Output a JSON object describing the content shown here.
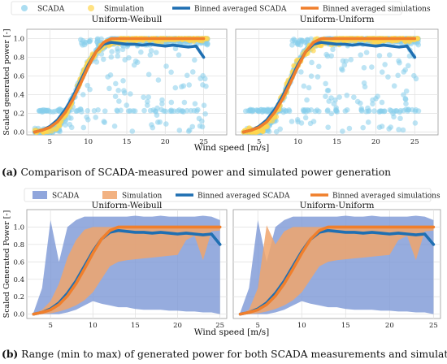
{
  "figure": {
    "caption_a_label": "(a)",
    "caption_a_text": " Comparison of SCADA-measured power and simulated power generation",
    "caption_b_label": "(b)",
    "caption_b_text": " Range (min to max) of generated power for both SCADA measurements and simulations"
  },
  "colors": {
    "scada": "#87ceeb",
    "simulation": "#ffd54f",
    "binned_scada": "#1f6fb2",
    "binned_sim": "#f07f2c",
    "range_scada": "#7c97d6",
    "range_sim": "#f0a56c"
  },
  "chart_data": [
    {
      "panel": "a",
      "type": "scatter",
      "legend": [
        "SCADA",
        "Simulation",
        "Binned averaged SCADA",
        "Binned averaged simulations"
      ],
      "legend_placement": "top",
      "xlabel": "Wind speed [m/s]",
      "ylabel": "Scaled generated power [-]",
      "xlim": [
        2,
        28
      ],
      "ylim": [
        -0.03,
        1.1
      ],
      "xticks": [
        5,
        10,
        15,
        20,
        25
      ],
      "yticks": [
        0.0,
        0.2,
        0.4,
        0.6,
        0.8,
        1.0
      ],
      "grid": true,
      "subplots": [
        {
          "title": "Uniform-Weibull",
          "show_yticklabels": true,
          "series": [
            {
              "name": "Binned averaged SCADA",
              "x": [
                3,
                4,
                5,
                6,
                7,
                8,
                9,
                10,
                11,
                12,
                13,
                14,
                15,
                16,
                17,
                18,
                19,
                20,
                21,
                22,
                23,
                24,
                25
              ],
              "y": [
                0.0,
                0.02,
                0.06,
                0.13,
                0.24,
                0.38,
                0.55,
                0.72,
                0.86,
                0.94,
                0.96,
                0.95,
                0.94,
                0.94,
                0.93,
                0.94,
                0.93,
                0.92,
                0.93,
                0.92,
                0.91,
                0.92,
                0.8
              ]
            },
            {
              "name": "Binned averaged simulations",
              "x": [
                3,
                4,
                5,
                6,
                7,
                8,
                9,
                10,
                11,
                12,
                13,
                14,
                15,
                16,
                17,
                18,
                19,
                20,
                21,
                22,
                23,
                24,
                25
              ],
              "y": [
                0.0,
                0.02,
                0.05,
                0.11,
                0.21,
                0.35,
                0.52,
                0.7,
                0.86,
                0.96,
                1.0,
                1.0,
                1.0,
                1.0,
                1.0,
                1.0,
                1.0,
                1.0,
                1.0,
                1.0,
                1.0,
                1.0,
                1.0
              ]
            }
          ]
        },
        {
          "title": "Uniform-Uniform",
          "show_yticklabels": false,
          "series": [
            {
              "name": "Binned averaged SCADA",
              "x": [
                3,
                4,
                5,
                6,
                7,
                8,
                9,
                10,
                11,
                12,
                13,
                14,
                15,
                16,
                17,
                18,
                19,
                20,
                21,
                22,
                23,
                24,
                25
              ],
              "y": [
                0.0,
                0.02,
                0.06,
                0.13,
                0.24,
                0.38,
                0.55,
                0.72,
                0.86,
                0.94,
                0.96,
                0.95,
                0.94,
                0.94,
                0.93,
                0.94,
                0.93,
                0.92,
                0.93,
                0.92,
                0.91,
                0.92,
                0.8
              ]
            },
            {
              "name": "Binned averaged simulations",
              "x": [
                3,
                4,
                5,
                6,
                7,
                8,
                9,
                10,
                11,
                12,
                13,
                14,
                15,
                16,
                17,
                18,
                19,
                20,
                21,
                22,
                23,
                24,
                25
              ],
              "y": [
                0.0,
                0.02,
                0.05,
                0.11,
                0.21,
                0.35,
                0.52,
                0.7,
                0.86,
                0.96,
                1.0,
                1.0,
                1.0,
                1.0,
                1.0,
                1.0,
                1.0,
                1.0,
                1.0,
                1.0,
                1.0,
                1.0,
                1.0
              ]
            }
          ]
        }
      ]
    },
    {
      "panel": "b",
      "type": "area",
      "legend": [
        "SCADA",
        "Simulation",
        "Binned averaged SCADA",
        "Binned averaged simulations"
      ],
      "legend_placement": "top",
      "xlabel": "Wind speed [m/s]",
      "ylabel": "Scaled Generated Power [-]",
      "xlim": [
        2.2,
        25.8
      ],
      "ylim": [
        -0.05,
        1.2
      ],
      "xticks": [
        5,
        10,
        15,
        20,
        25
      ],
      "yticks": [
        0.0,
        0.2,
        0.4,
        0.6,
        0.8,
        1.0
      ],
      "grid": true,
      "subplots": [
        {
          "title": "Uniform-Weibull",
          "show_yticklabels": true,
          "range_x": [
            3,
            4,
            5,
            6,
            7,
            8,
            9,
            10,
            11,
            12,
            13,
            14,
            15,
            16,
            17,
            18,
            19,
            20,
            21,
            22,
            23,
            24,
            25
          ],
          "scada_max": [
            0.02,
            0.3,
            1.08,
            0.6,
            1.0,
            1.08,
            1.12,
            1.12,
            1.12,
            1.12,
            1.12,
            1.12,
            1.13,
            1.12,
            1.12,
            1.13,
            1.12,
            1.12,
            1.12,
            1.12,
            1.13,
            1.12,
            1.08
          ],
          "scada_min": [
            0.0,
            0.0,
            0.0,
            0.0,
            0.02,
            0.05,
            0.1,
            0.15,
            0.12,
            0.1,
            0.08,
            0.08,
            0.06,
            0.05,
            0.05,
            0.05,
            0.04,
            0.04,
            0.03,
            0.03,
            0.02,
            0.02,
            0.0
          ],
          "sim_max": [
            0.0,
            0.05,
            0.15,
            0.35,
            0.65,
            0.85,
            0.97,
            1.0,
            1.0,
            1.0,
            1.0,
            1.0,
            1.0,
            1.0,
            1.0,
            1.0,
            1.0,
            1.0,
            1.0,
            1.0,
            1.0,
            1.0,
            1.0
          ],
          "sim_min": [
            0.0,
            0.0,
            0.01,
            0.03,
            0.06,
            0.1,
            0.16,
            0.25,
            0.4,
            0.55,
            0.6,
            0.62,
            0.63,
            0.64,
            0.65,
            0.66,
            0.67,
            0.68,
            0.85,
            0.9,
            0.62,
            0.95,
            0.96
          ],
          "series": [
            {
              "name": "Binned averaged SCADA",
              "x": [
                3,
                4,
                5,
                6,
                7,
                8,
                9,
                10,
                11,
                12,
                13,
                14,
                15,
                16,
                17,
                18,
                19,
                20,
                21,
                22,
                23,
                24,
                25
              ],
              "y": [
                0.0,
                0.02,
                0.06,
                0.13,
                0.24,
                0.38,
                0.55,
                0.72,
                0.86,
                0.94,
                0.96,
                0.95,
                0.94,
                0.94,
                0.93,
                0.94,
                0.93,
                0.92,
                0.93,
                0.92,
                0.91,
                0.92,
                0.8
              ]
            },
            {
              "name": "Binned averaged simulations",
              "x": [
                3,
                4,
                5,
                6,
                7,
                8,
                9,
                10,
                11,
                12,
                13,
                14,
                15,
                16,
                17,
                18,
                19,
                20,
                21,
                22,
                23,
                24,
                25
              ],
              "y": [
                0.0,
                0.02,
                0.05,
                0.11,
                0.21,
                0.35,
                0.52,
                0.7,
                0.86,
                0.96,
                1.0,
                1.0,
                1.0,
                1.0,
                1.0,
                1.0,
                1.0,
                1.0,
                1.0,
                1.0,
                1.0,
                1.0,
                1.0
              ]
            }
          ]
        },
        {
          "title": "Uniform-Uniform",
          "show_yticklabels": false,
          "range_x": [
            3,
            4,
            5,
            6,
            7,
            8,
            9,
            10,
            11,
            12,
            13,
            14,
            15,
            16,
            17,
            18,
            19,
            20,
            21,
            22,
            23,
            24,
            25
          ],
          "scada_max": [
            0.02,
            0.3,
            1.08,
            0.6,
            1.0,
            1.08,
            1.12,
            1.12,
            1.12,
            1.12,
            1.12,
            1.12,
            1.13,
            1.12,
            1.12,
            1.13,
            1.12,
            1.12,
            1.12,
            1.12,
            1.13,
            1.12,
            1.08
          ],
          "scada_min": [
            0.0,
            0.0,
            0.0,
            0.0,
            0.02,
            0.05,
            0.1,
            0.15,
            0.12,
            0.1,
            0.08,
            0.08,
            0.06,
            0.05,
            0.05,
            0.05,
            0.04,
            0.04,
            0.03,
            0.03,
            0.02,
            0.02,
            0.0
          ],
          "sim_max": [
            0.0,
            0.05,
            0.3,
            1.02,
            0.8,
            0.95,
            1.0,
            1.0,
            1.0,
            1.0,
            1.0,
            1.0,
            1.0,
            1.0,
            1.0,
            1.0,
            1.0,
            1.0,
            1.0,
            1.0,
            1.0,
            1.0,
            1.0
          ],
          "sim_min": [
            0.0,
            0.0,
            0.01,
            0.03,
            0.06,
            0.1,
            0.16,
            0.25,
            0.4,
            0.55,
            0.6,
            0.62,
            0.63,
            0.64,
            0.65,
            0.66,
            0.67,
            0.68,
            0.85,
            0.9,
            0.62,
            0.95,
            0.96
          ],
          "series": [
            {
              "name": "Binned averaged SCADA",
              "x": [
                3,
                4,
                5,
                6,
                7,
                8,
                9,
                10,
                11,
                12,
                13,
                14,
                15,
                16,
                17,
                18,
                19,
                20,
                21,
                22,
                23,
                24,
                25
              ],
              "y": [
                0.0,
                0.02,
                0.06,
                0.13,
                0.24,
                0.38,
                0.55,
                0.72,
                0.86,
                0.94,
                0.96,
                0.95,
                0.94,
                0.94,
                0.93,
                0.94,
                0.93,
                0.92,
                0.93,
                0.92,
                0.91,
                0.92,
                0.8
              ]
            },
            {
              "name": "Binned averaged simulations",
              "x": [
                3,
                4,
                5,
                6,
                7,
                8,
                9,
                10,
                11,
                12,
                13,
                14,
                15,
                16,
                17,
                18,
                19,
                20,
                21,
                22,
                23,
                24,
                25
              ],
              "y": [
                0.0,
                0.02,
                0.05,
                0.11,
                0.21,
                0.35,
                0.52,
                0.7,
                0.86,
                0.96,
                1.0,
                1.0,
                1.0,
                1.0,
                1.0,
                1.0,
                1.0,
                1.0,
                1.0,
                1.0,
                1.0,
                1.0,
                1.0
              ]
            }
          ]
        }
      ]
    }
  ]
}
